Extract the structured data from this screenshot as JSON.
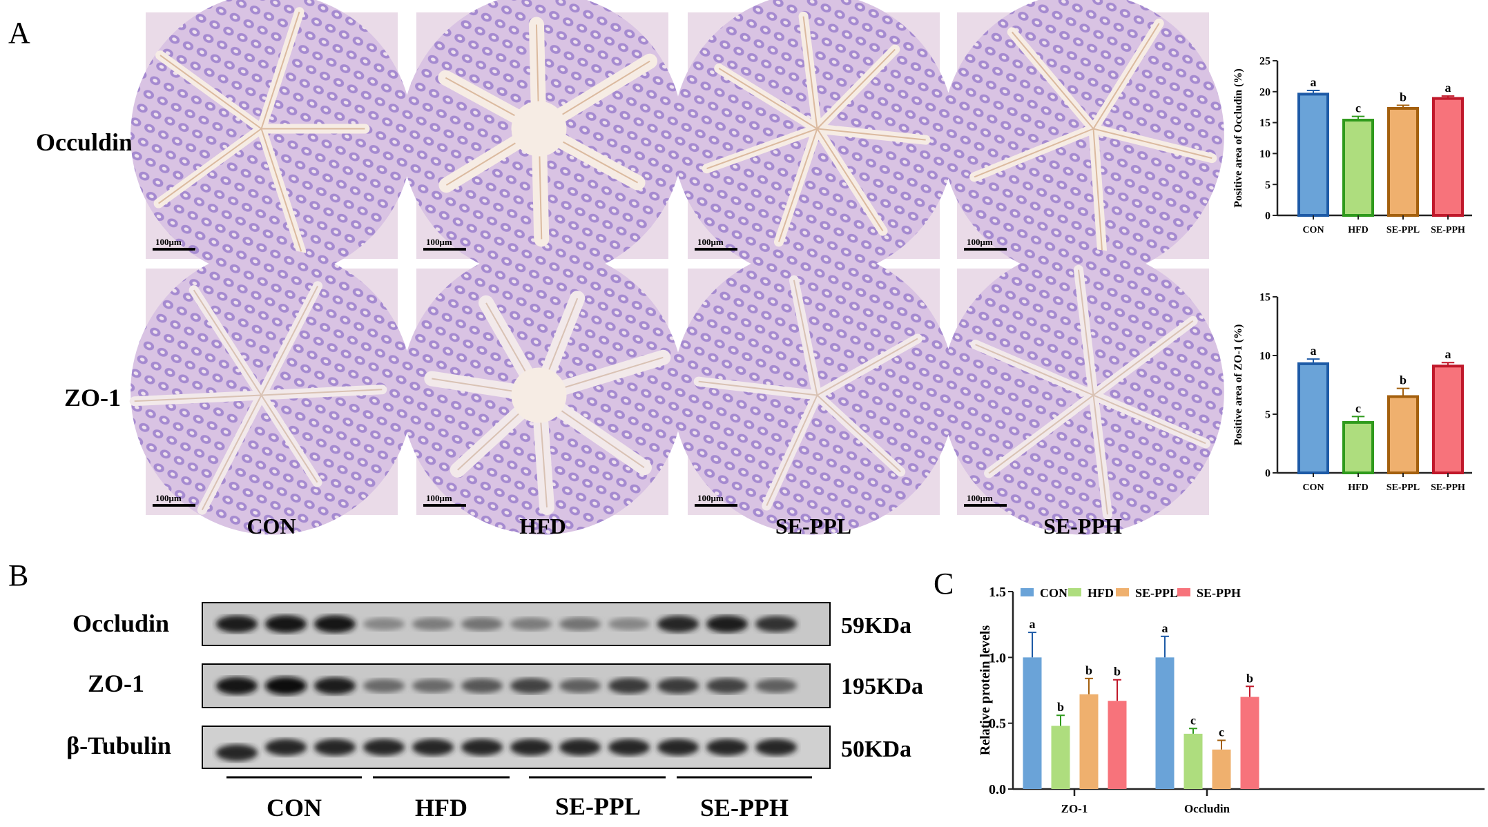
{
  "panels": {
    "a": "A",
    "b": "B",
    "c": "C"
  },
  "micrographs": {
    "row_labels": [
      "Occuldin",
      "ZO-1"
    ],
    "column_labels": [
      "CON",
      "HFD",
      "SE-PPL",
      "SE-PPH"
    ],
    "scale_bar": "100μm"
  },
  "western_blot": {
    "rows": [
      {
        "label": "Occludin",
        "size": "59KDa"
      },
      {
        "label": "ZO-1",
        "size": "195KDa"
      },
      {
        "label": "β-Tubulin",
        "size": "50KDa"
      }
    ],
    "groups": [
      "CON",
      "HFD",
      "SE-PPL",
      "SE-PPH"
    ]
  },
  "colors": {
    "CON": {
      "fill": "#6aa3d8",
      "stroke": "#1d5aa6"
    },
    "HFD": {
      "fill": "#aedd7e",
      "stroke": "#2f9a1c"
    },
    "SE-PPL": {
      "fill": "#efb06e",
      "stroke": "#a4600e"
    },
    "SE-PPH": {
      "fill": "#f7737b",
      "stroke": "#c0182a"
    }
  },
  "chart_data": [
    {
      "type": "bar",
      "categories": [
        "CON",
        "HFD",
        "SE-PPL",
        "SE-PPH"
      ],
      "values": [
        19.6,
        15.4,
        17.3,
        18.9
      ],
      "errors": [
        0.6,
        0.6,
        0.5,
        0.4
      ],
      "significance": [
        "a",
        "c",
        "b",
        "a"
      ],
      "ylabel": "Positive area of Occludin (%)",
      "ylim": [
        0,
        25
      ],
      "yticks": [
        "0",
        "5",
        "10",
        "15",
        "20",
        "25"
      ]
    },
    {
      "type": "bar",
      "categories": [
        "CON",
        "HFD",
        "SE-PPL",
        "SE-PPH"
      ],
      "values": [
        9.3,
        4.3,
        6.5,
        9.1
      ],
      "errors": [
        0.4,
        0.5,
        0.7,
        0.3
      ],
      "significance": [
        "a",
        "c",
        "b",
        "a"
      ],
      "ylabel": "Positive area of ZO-1 (%)",
      "ylim": [
        0,
        15
      ],
      "yticks": [
        "0",
        "5",
        "10",
        "15"
      ]
    },
    {
      "type": "bar",
      "categories": [
        "ZO-1",
        "Occludin"
      ],
      "series": [
        {
          "name": "CON",
          "values": [
            1.0,
            1.0
          ],
          "errors": [
            0.19,
            0.16
          ],
          "significance": [
            "a",
            "a"
          ]
        },
        {
          "name": "HFD",
          "values": [
            0.48,
            0.42
          ],
          "errors": [
            0.08,
            0.04
          ],
          "significance": [
            "b",
            "c"
          ]
        },
        {
          "name": "SE-PPL",
          "values": [
            0.72,
            0.3
          ],
          "errors": [
            0.12,
            0.07
          ],
          "significance": [
            "b",
            "c"
          ]
        },
        {
          "name": "SE-PPH",
          "values": [
            0.67,
            0.7
          ],
          "errors": [
            0.16,
            0.08
          ],
          "significance": [
            "b",
            "b"
          ]
        }
      ],
      "ylabel": "Relative protein levels",
      "ylim": [
        0,
        1.5
      ],
      "yticks": [
        "0.0",
        "0.5",
        "1.0",
        "1.5"
      ],
      "legend": "top"
    }
  ]
}
